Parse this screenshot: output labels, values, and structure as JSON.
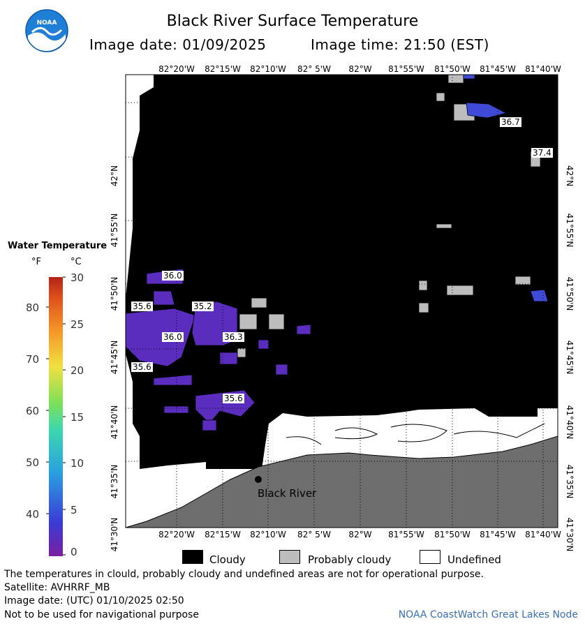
{
  "header": {
    "title": "Black River Surface Temperature",
    "image_date_label": "Image date: 01/09/2025",
    "image_time_label": "Image time: 21:50 (EST)",
    "logo_text": "NOAA"
  },
  "map": {
    "lon_labels": [
      "82°20'W",
      "82°15'W",
      "82°10'W",
      "82° 5'W",
      "82°W",
      "81°55'W",
      "81°50'W",
      "81°45'W",
      "81°40'W"
    ],
    "lat_labels": [
      "42°N",
      "41°55'N",
      "41°50'N",
      "41°45'N",
      "41°40'N",
      "41°35'N",
      "41°30'N"
    ],
    "place_label": "Black River",
    "temp_labels": [
      "36.7",
      "37.4",
      "36.0",
      "35.6",
      "35.2",
      "36.0",
      "36.3",
      "35.6",
      "35.6"
    ],
    "colors": {
      "cloudy": "#000000",
      "probably_cloudy": "#bdbdbd",
      "land": "#6e6e6e",
      "water_cold": "#5b2dbf",
      "water_warm": "#3f4bd6"
    }
  },
  "legend": {
    "title": "Water Temperature",
    "unit_f": "°F",
    "unit_c": "°C",
    "f_ticks": [
      "80",
      "70",
      "60",
      "50",
      "40"
    ],
    "c_ticks": [
      "30",
      "25",
      "20",
      "15",
      "10",
      "5",
      "0"
    ],
    "range_f": [
      32,
      86
    ],
    "range_c": [
      0,
      30
    ]
  },
  "key": {
    "cloudy": "Cloudy",
    "probably_cloudy": "Probably cloudy",
    "undefined": "Undefined"
  },
  "footer": {
    "line1": "The temperatures in clould, probably cloudy and undefined areas are not for operational purpose.",
    "line2": "Satellite: AVHRRF_MB",
    "line3": "Image date: (UTC) 01/10/2025  02:50",
    "line4": "Not to be used for navigational purpose",
    "credit": "NOAA CoastWatch Great Lakes Node"
  }
}
